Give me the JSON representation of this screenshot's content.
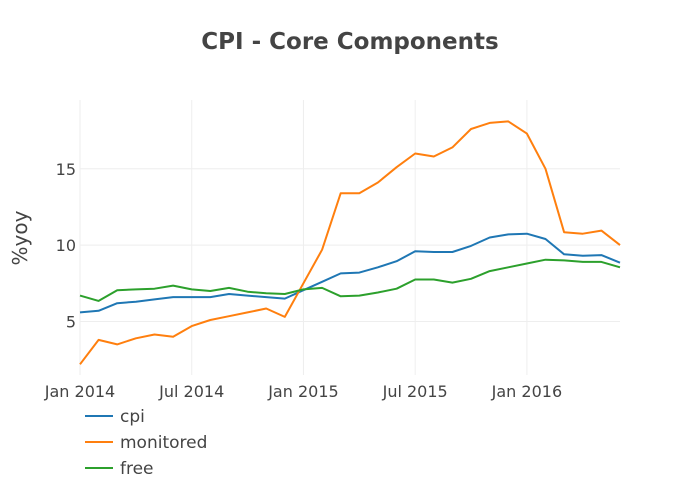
{
  "chart_data": {
    "type": "line",
    "title": "CPI - Core Components",
    "xlabel": "",
    "ylabel": "%yoy",
    "x_ticks": [
      "Jan 2014",
      "Jul 2014",
      "Jan 2015",
      "Jul 2015",
      "Jan 2016"
    ],
    "y_ticks": [
      "5",
      "10",
      "15"
    ],
    "y_tick_values": [
      5,
      10,
      15
    ],
    "x_range": [
      "2014-01",
      "2016-06"
    ],
    "ylim": [
      1.5,
      19.5
    ],
    "grid": true,
    "legend_position": "bottom-left",
    "x": [
      "2014-01",
      "2014-02",
      "2014-03",
      "2014-04",
      "2014-05",
      "2014-06",
      "2014-07",
      "2014-08",
      "2014-09",
      "2014-10",
      "2014-11",
      "2014-12",
      "2015-01",
      "2015-02",
      "2015-03",
      "2015-04",
      "2015-05",
      "2015-06",
      "2015-07",
      "2015-08",
      "2015-09",
      "2015-10",
      "2015-11",
      "2015-12",
      "2016-01",
      "2016-02",
      "2016-03",
      "2016-04",
      "2016-05",
      "2016-06"
    ],
    "series": [
      {
        "name": "cpi",
        "color": "#1f77b4",
        "values": [
          5.6,
          5.7,
          6.2,
          6.3,
          6.45,
          6.6,
          6.6,
          6.6,
          6.8,
          6.7,
          6.6,
          6.5,
          7.05,
          7.6,
          8.15,
          8.2,
          8.55,
          8.95,
          9.6,
          9.55,
          9.55,
          9.95,
          10.5,
          10.7,
          10.75,
          10.4,
          9.4,
          9.3,
          9.35,
          8.85
        ]
      },
      {
        "name": "monitored",
        "color": "#ff7f0e",
        "values": [
          2.2,
          3.8,
          3.5,
          3.9,
          4.15,
          4.0,
          4.7,
          5.1,
          5.35,
          5.6,
          5.85,
          5.3,
          7.5,
          9.7,
          13.4,
          13.4,
          14.1,
          15.1,
          16.0,
          15.8,
          16.4,
          17.6,
          18.0,
          18.1,
          17.3,
          15.0,
          10.85,
          10.75,
          10.95,
          10.0
        ]
      },
      {
        "name": "free",
        "color": "#2ca02c",
        "values": [
          6.7,
          6.35,
          7.05,
          7.1,
          7.15,
          7.35,
          7.1,
          7.0,
          7.2,
          6.95,
          6.85,
          6.8,
          7.1,
          7.2,
          6.65,
          6.7,
          6.9,
          7.15,
          7.75,
          7.75,
          7.55,
          7.8,
          8.3,
          8.55,
          8.8,
          9.05,
          9.0,
          8.9,
          8.9,
          8.55
        ]
      }
    ]
  }
}
